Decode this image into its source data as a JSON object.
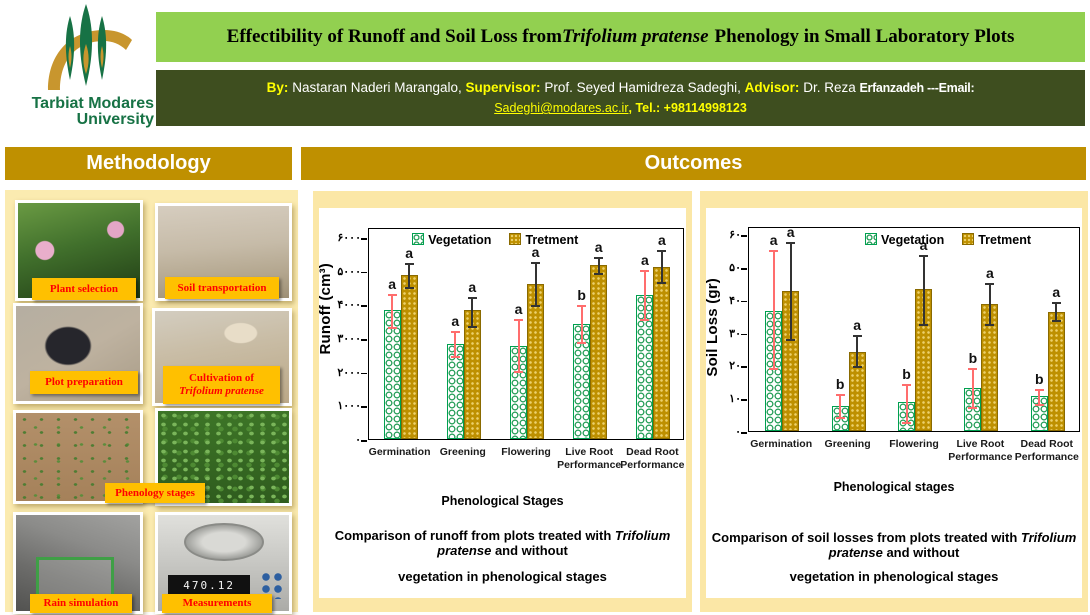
{
  "colors": {
    "title_bg": "#92D050",
    "byline_bg": "#3E4E1F",
    "section_bg": "#BF9000",
    "panel_bg": "#FBE7A6",
    "label_bg": "#FFC000",
    "label_text": "#FF0000",
    "vegetation_green": "#00A050",
    "treatment_gold": "#BE9000",
    "veg_error_red": "#FF6D6D",
    "trt_error_black": "#333333",
    "logo_green": "#177245",
    "logo_gold": "#C8962E"
  },
  "header": {
    "logo_line1": "Tarbiat Modares",
    "logo_line2": "University",
    "title_pre": "Effectibility of Runoff and Soil Loss from ",
    "title_species": "Trifolium pratense",
    "title_post": " Phenology in Small Laboratory Plots",
    "by_label": "By:",
    "by_name": " Nastaran Naderi Marangalo, ",
    "supervisor_label": "Supervisor:",
    "supervisor_name": " Prof. Seyed Hamidreza Sadeghi, ",
    "advisor_label": "Advisor:",
    "advisor_name": " Dr. Reza ",
    "advisor_name2": "Erfanzadeh ---Email:",
    "email": "Sadeghi@modares.ac.ir",
    "tel": ", Tel.: +98114998123"
  },
  "sections": {
    "methodology": "Methodology",
    "outcomes": "Outcomes"
  },
  "methodology": {
    "labels": {
      "plant_selection": "Plant selection",
      "soil_transportation": "Soil transportation",
      "plot_preparation": "Plot preparation",
      "cultivation_line1": "Cultivation of",
      "cultivation_line2": "Trifolium pratense",
      "phenology_stages": "Phenology stages",
      "rain_simulation": "Rain simulation",
      "measurements": "Measurements"
    },
    "scale_reading": "470.12"
  },
  "chart_data": [
    {
      "type": "bar",
      "ylabel": "Runoff (cm³)",
      "xlabel": "Phenological Stages",
      "caption_pre": "Comparison of runoff from plots treated with ",
      "caption_species": "Trifolium pratense",
      "caption_post": " and without",
      "caption_line2": "vegetation in phenological stages",
      "categories": [
        "Germination",
        "Greening",
        "Flowering",
        "Live Root\nPerformance",
        "Dead Root\nPerformance"
      ],
      "ylim": [
        0,
        6300
      ],
      "yticks": {
        "values": [
          0,
          1000,
          2000,
          3000,
          4000,
          5000,
          6000
        ],
        "labels": [
          "۰",
          "۱۰۰۰",
          "۲۰۰۰",
          "۳۰۰۰",
          "۴۰۰۰",
          "۵۰۰۰",
          "۶۰۰۰"
        ]
      },
      "legend_pos": "top-center",
      "grid": false,
      "series": [
        {
          "name": "Vegetation",
          "err_color": "#FF6D6D",
          "values": [
            3850,
            2850,
            2800,
            3450,
            4300
          ],
          "err_low": [
            3350,
            2500,
            2050,
            2900,
            3600
          ],
          "err_high": [
            4350,
            3250,
            3600,
            4000,
            5050
          ],
          "letters": [
            "a",
            "a",
            "a",
            "b",
            "a"
          ]
        },
        {
          "name": "Tretment",
          "err_color": "#333333",
          "values": [
            4900,
            3850,
            4650,
            5200,
            5150
          ],
          "err_low": [
            4550,
            3400,
            4000,
            4950,
            4700
          ],
          "err_high": [
            5250,
            4250,
            5300,
            5450,
            5650
          ],
          "letters": [
            "a",
            "a",
            "a",
            "a",
            "a"
          ]
        }
      ]
    },
    {
      "type": "bar",
      "ylabel": "Soil Loss (gr)",
      "xlabel": "Phenological stages",
      "caption_pre": "Comparison of soil losses from plots treated with ",
      "caption_species": "Trifolium pratense",
      "caption_post": " and without",
      "caption_line2": "vegetation in phenological stages",
      "categories": [
        "Germination",
        "Greening",
        "Flowering",
        "Live Root\nPerformance",
        "Dead Root\nPerformance"
      ],
      "ylim": [
        0,
        62.5
      ],
      "yticks": {
        "values": [
          0,
          10,
          20,
          30,
          40,
          50,
          60
        ],
        "labels": [
          "۰",
          "۱۰",
          "۲۰",
          "۳۰",
          "۴۰",
          "۵۰",
          "۶۰"
        ]
      },
      "legend_pos": "top-right",
      "grid": false,
      "series": [
        {
          "name": "Vegetation",
          "err_color": "#FF6D6D",
          "values": [
            37,
            8,
            9,
            13.5,
            11
          ],
          "err_low": [
            19.5,
            4.5,
            3,
            7.5,
            8.5
          ],
          "err_high": [
            55.5,
            11.5,
            14.5,
            19.5,
            13
          ],
          "letters": [
            "a",
            "b",
            "b",
            "b",
            "b"
          ]
        },
        {
          "name": "Tretment",
          "err_color": "#333333",
          "values": [
            43,
            24.5,
            43.5,
            39,
            36.5
          ],
          "err_low": [
            28.5,
            20,
            33,
            33,
            34
          ],
          "err_high": [
            58,
            29.5,
            54,
            45.5,
            39.5
          ],
          "letters": [
            "a",
            "a",
            "a",
            "a",
            "a"
          ]
        }
      ]
    }
  ]
}
